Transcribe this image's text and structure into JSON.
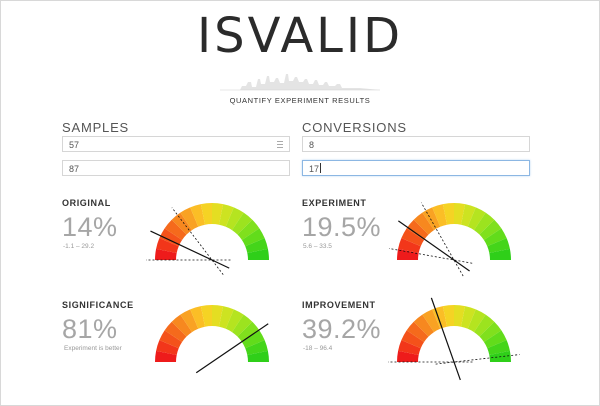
{
  "app": {
    "title": "ISVALID",
    "subtitle": "QUANTIFY EXPERIMENT RESULTS"
  },
  "inputs": {
    "samples_label": "SAMPLES",
    "conversions_label": "CONVERSIONS",
    "samples_original": "57",
    "samples_experiment": "87",
    "conversions_original": "8",
    "conversions_experiment": "17"
  },
  "metrics": {
    "original": {
      "title": "ORIGINAL",
      "value": "14%",
      "range": "-1.1 – 29.2",
      "needle": 14,
      "low": -1.1,
      "high": 29.2
    },
    "experiment": {
      "title": "EXPERIMENT",
      "value": "19.5%",
      "range": "5.6 – 33.5",
      "needle": 19.5,
      "low": 5.6,
      "high": 33.5
    },
    "significance": {
      "title": "SIGNIFICANCE",
      "value": "81%",
      "range": "Experiment is better",
      "needle": 81
    },
    "improvement": {
      "title": "IMPROVEMENT",
      "value": "39.2%",
      "range": "-18 – 96.4",
      "needle": 39.2,
      "low": -18,
      "high": 96.4
    }
  },
  "gauge_colors": [
    "#ee1b1b",
    "#f2361a",
    "#f4521a",
    "#f56a1c",
    "#f7881f",
    "#f9a223",
    "#fbbe26",
    "#f5d324",
    "#e4de22",
    "#cde321",
    "#b5e420",
    "#9ce31f",
    "#80e01d",
    "#62dc1b",
    "#44d51a",
    "#2fcf19"
  ]
}
